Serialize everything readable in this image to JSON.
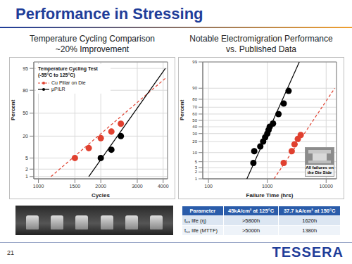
{
  "title": "Performance in Stressing",
  "chart_data": [
    {
      "type": "scatter",
      "title": "Temperature Cycling Comparison",
      "subtitle": "~20% Improvement",
      "annotation": "Temperature Cycling Test (-55°C to 125°C)",
      "x_label": "Cycles",
      "y_label": "Percent",
      "log": "x",
      "grid": true,
      "legend": "upper left",
      "xlim": [
        950,
        4200
      ],
      "xticks": [
        1000,
        1500,
        2000,
        3000,
        4000
      ],
      "ylim": [
        0.8,
        97
      ],
      "yticks": [
        1,
        2,
        5,
        20,
        50,
        80,
        95
      ],
      "series": [
        {
          "name": "Cu Pillar on Die",
          "color": "#e0402f",
          "marker": "circle",
          "line_style": "dashed",
          "x": [
            1500,
            1750,
            2000,
            2250,
            2500
          ],
          "values": [
            5,
            10,
            18,
            25,
            35
          ],
          "fit": {
            "x": [
              1150,
              4100
            ],
            "values": [
              1,
              90
            ]
          }
        },
        {
          "name": "μPILR",
          "color": "#000000",
          "marker": "circle",
          "line_style": "solid",
          "x": [
            2000,
            2250,
            2500
          ],
          "values": [
            5,
            9,
            20
          ],
          "fit": {
            "x": [
              1750,
              4100
            ],
            "values": [
              1,
              95
            ]
          }
        }
      ]
    },
    {
      "type": "scatter",
      "title": "Notable Electromigration Performance vs. Published Data",
      "annotation": "All failures on the Die Side",
      "x_label": "Failure Time (hrs)",
      "y_label": "Percent",
      "log": "x",
      "grid": true,
      "xlim": [
        80,
        15000
      ],
      "xticks": [
        100,
        1000,
        10000
      ],
      "ylim": [
        1,
        99
      ],
      "yticks": [
        1,
        2,
        3,
        5,
        10,
        20,
        30,
        40,
        50,
        60,
        70,
        80,
        90,
        99
      ],
      "series": [
        {
          "color": "#000000",
          "marker": "circle",
          "line_style": "solid",
          "x": [
            580,
            600,
            760,
            850,
            920,
            1000,
            1050,
            1100,
            1250,
            1550,
            1900,
            2300
          ],
          "values": [
            4.5,
            11,
            15,
            20,
            25,
            30,
            35,
            40,
            45,
            60,
            75,
            88
          ],
          "fit": {
            "x": [
              450,
              3500
            ],
            "values": [
              1,
              99
            ]
          }
        },
        {
          "color": "#e0402f",
          "marker": "circle",
          "line_style": "dashed",
          "x": [
            1900,
            2600,
            2900,
            3300,
            3700
          ],
          "values": [
            4.5,
            11,
            17,
            23,
            28
          ],
          "fit": {
            "x": [
              1300,
              14000
            ],
            "values": [
              1,
              90
            ]
          }
        }
      ]
    }
  ],
  "table": {
    "header": [
      "Parameter",
      "45kA/cm² at 125°C",
      "37.7 kA/cm² at 150°C"
    ],
    "rows": [
      [
        "t₆₃ life (η)",
        ">5800h",
        "1620h"
      ],
      [
        "t₅₀ life (MTTF)",
        ">5000h",
        "1380h"
      ]
    ]
  },
  "page_number": "21",
  "logo": "TESSERA"
}
